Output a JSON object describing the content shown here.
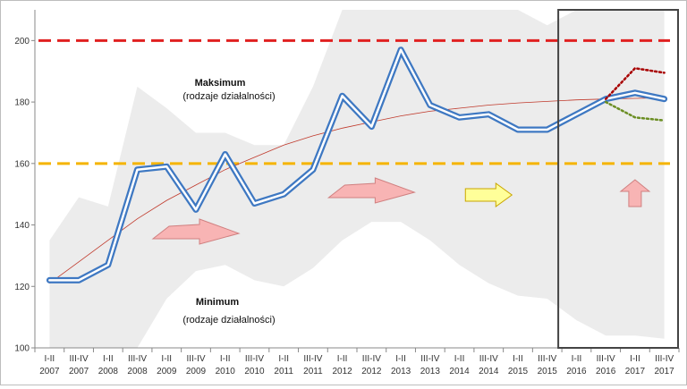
{
  "chart_data": {
    "type": "line",
    "title": "",
    "xlabel": "",
    "ylabel": "",
    "ylim": [
      100,
      210
    ],
    "yticks": [
      100,
      120,
      140,
      160,
      180,
      200
    ],
    "grid": false,
    "categories": [
      [
        "I-II",
        "2007"
      ],
      [
        "III-IV",
        "2007"
      ],
      [
        "I-II",
        "2008"
      ],
      [
        "III-IV",
        "2008"
      ],
      [
        "I-II",
        "2009"
      ],
      [
        "III-IV",
        "2009"
      ],
      [
        "I-II",
        "2010"
      ],
      [
        "III-IV",
        "2010"
      ],
      [
        "I-II",
        "2011"
      ],
      [
        "III-IV",
        "2011"
      ],
      [
        "I-II",
        "2012"
      ],
      [
        "III-IV",
        "2012"
      ],
      [
        "I-II",
        "2013"
      ],
      [
        "III-IV",
        "2013"
      ],
      [
        "I-II",
        "2014"
      ],
      [
        "III-IV",
        "2014"
      ],
      [
        "I-II",
        "2015"
      ],
      [
        "III-IV",
        "2015"
      ],
      [
        "I-II",
        "2016"
      ],
      [
        "III-IV",
        "2016"
      ],
      [
        "I-II",
        "2017"
      ],
      [
        "III-IV",
        "2017"
      ]
    ],
    "series": [
      {
        "role": "main",
        "values": [
          122,
          122,
          127,
          158,
          159,
          145,
          163,
          147,
          150,
          158,
          182,
          172,
          197,
          179,
          175,
          176,
          171,
          171,
          176,
          181,
          183,
          181
        ]
      },
      {
        "role": "trend",
        "values": [
          121,
          128,
          135,
          142,
          148,
          153,
          158,
          162,
          166,
          169,
          171.5,
          173.5,
          175.5,
          177,
          178,
          179,
          179.7,
          180.2,
          180.7,
          181,
          181.2,
          181.4
        ]
      },
      {
        "role": "max_envelope",
        "values": [
          135,
          149,
          146,
          185,
          178,
          170,
          170,
          166,
          166,
          185,
          220,
          220,
          220,
          220,
          220,
          220,
          220,
          205,
          220,
          220,
          220,
          220
        ]
      },
      {
        "role": "min_envelope",
        "values": [
          100,
          100,
          100,
          100,
          116,
          125,
          127,
          122,
          120,
          126,
          135,
          141,
          141,
          135,
          127,
          121,
          117,
          116,
          109,
          104,
          104,
          103
        ]
      },
      {
        "role": "upper_scenario",
        "values": [
          null,
          null,
          null,
          null,
          null,
          null,
          null,
          null,
          null,
          null,
          null,
          null,
          null,
          null,
          null,
          null,
          null,
          null,
          null,
          181,
          191,
          189.5
        ]
      },
      {
        "role": "lower_scenario",
        "values": [
          null,
          null,
          null,
          null,
          null,
          null,
          null,
          null,
          null,
          null,
          null,
          null,
          null,
          null,
          null,
          null,
          null,
          null,
          null,
          180,
          175,
          174
        ]
      }
    ],
    "reference_lines": [
      {
        "value": 200,
        "color": "#e02020"
      },
      {
        "value": 160,
        "color": "#f5b400"
      }
    ],
    "annotations": {
      "max_label": "Maksimum",
      "max_sub": "(rodzaje działalności)",
      "min_label": "Minimum",
      "min_sub": "(rodzaje działalności)"
    },
    "arrows": [
      {
        "direction": "rising",
        "color": "pink",
        "near_category": 5
      },
      {
        "direction": "rising",
        "color": "pink",
        "near_category": 11
      },
      {
        "direction": "flat",
        "color": "yellow",
        "near_category": 15
      },
      {
        "direction": "up",
        "color": "pink",
        "near_category": 20
      }
    ],
    "highlight_box": {
      "from_category": 18,
      "to_category": 21
    },
    "colors": {
      "main_line": "#3e78c2",
      "main_line_inner": "#ffffff",
      "trend": "#c0392b",
      "envelope": "#ececec",
      "upper_scenario": "#a80000",
      "lower_scenario": "#6b8e23",
      "arrow_pink": "#f8b4b4",
      "arrow_yellow": "#ffff99"
    }
  }
}
